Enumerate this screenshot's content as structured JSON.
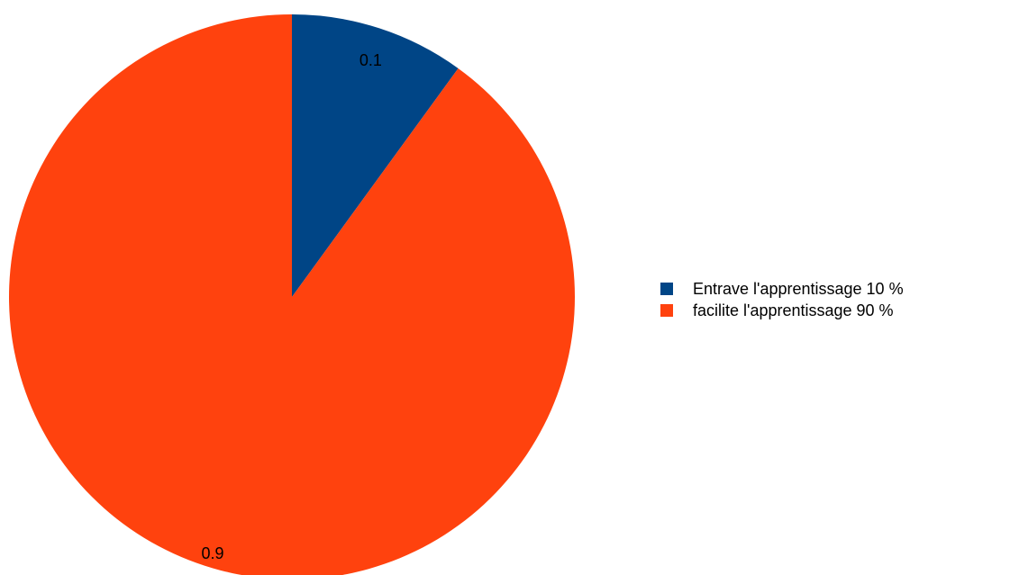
{
  "chart_data": {
    "type": "pie",
    "categories": [
      "Entrave l'apprentissage 10 %",
      "facilite l'apprentissage 90 %"
    ],
    "values": [
      0.1,
      0.9
    ],
    "value_labels": [
      "0.1",
      "0.9"
    ],
    "colors": [
      "#004586",
      "#ff420e"
    ],
    "title": "",
    "legend_position": "right"
  }
}
